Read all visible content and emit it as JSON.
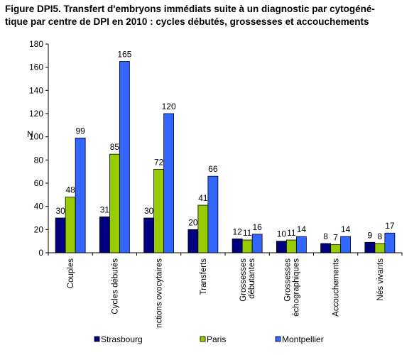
{
  "chart_data": {
    "type": "bar",
    "title_lines": [
      "Figure DPI5. Transfert d'embryons immédiats suite à un diagnostic par cytogéné-",
      "tique par centre de DPI en 2010 : cycles débutés, grossesses et accouchements"
    ],
    "ylabel": "N",
    "xlabel": "",
    "ylim": [
      0,
      180
    ],
    "yticks": [
      0,
      20,
      40,
      60,
      80,
      100,
      120,
      140,
      160,
      180
    ],
    "grid": false,
    "legend_position": "bottom",
    "categories": [
      [
        "Couples"
      ],
      [
        "Cycles débutés"
      ],
      [
        "nctions ovocytaires"
      ],
      [
        "Transferts"
      ],
      [
        "Grossesses",
        "débutantes"
      ],
      [
        "Grossesses",
        "échographiques"
      ],
      [
        "Accouchements"
      ],
      [
        "Nés vivants"
      ]
    ],
    "series": [
      {
        "name": "Strasbourg",
        "color": "#000080",
        "values": [
          30,
          31,
          30,
          20,
          12,
          10,
          8,
          9
        ]
      },
      {
        "name": "Paris",
        "color": "#99CC00",
        "values": [
          48,
          85,
          72,
          41,
          11,
          11,
          7,
          8
        ]
      },
      {
        "name": "Montpellier",
        "color": "#3366FF",
        "values": [
          99,
          165,
          120,
          66,
          16,
          14,
          14,
          17
        ]
      }
    ]
  }
}
